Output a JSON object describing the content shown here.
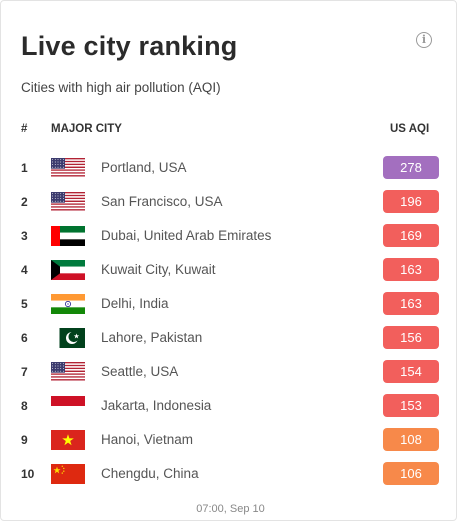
{
  "header": {
    "title": "Live city ranking",
    "subtitle": "Cities with high air pollution (AQI)"
  },
  "columns": {
    "rank": "#",
    "city": "MAJOR CITY",
    "aqi": "US AQI"
  },
  "rows": [
    {
      "rank": "1",
      "flag": "usa",
      "city": "Portland, USA",
      "aqi": "278",
      "color": "#a36fbf"
    },
    {
      "rank": "2",
      "flag": "usa",
      "city": "San Francisco, USA",
      "aqi": "196",
      "color": "#f25f5c"
    },
    {
      "rank": "3",
      "flag": "uae",
      "city": "Dubai, United Arab Emirates",
      "aqi": "169",
      "color": "#f25f5c"
    },
    {
      "rank": "4",
      "flag": "kuwait",
      "city": "Kuwait City, Kuwait",
      "aqi": "163",
      "color": "#f25f5c"
    },
    {
      "rank": "5",
      "flag": "india",
      "city": "Delhi, India",
      "aqi": "163",
      "color": "#f25f5c"
    },
    {
      "rank": "6",
      "flag": "pakistan",
      "city": "Lahore, Pakistan",
      "aqi": "156",
      "color": "#f25f5c"
    },
    {
      "rank": "7",
      "flag": "usa",
      "city": "Seattle, USA",
      "aqi": "154",
      "color": "#f25f5c"
    },
    {
      "rank": "8",
      "flag": "indonesia",
      "city": "Jakarta, Indonesia",
      "aqi": "153",
      "color": "#f25f5c"
    },
    {
      "rank": "9",
      "flag": "vietnam",
      "city": "Hanoi, Vietnam",
      "aqi": "108",
      "color": "#f7894a"
    },
    {
      "rank": "10",
      "flag": "china",
      "city": "Chengdu, China",
      "aqi": "106",
      "color": "#f7894a"
    }
  ],
  "footer": {
    "timestamp": "07:00, Sep 10"
  },
  "icons": {
    "info": "info-icon"
  }
}
